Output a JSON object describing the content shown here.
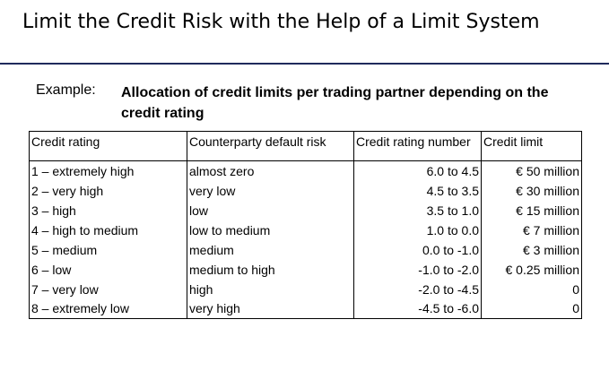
{
  "slide": {
    "title": "Limit the Credit Risk with the Help of a Limit System"
  },
  "example": {
    "label": "Example:",
    "heading": "Allocation of credit limits per trading partner depending on the credit rating"
  },
  "table": {
    "headers": [
      "Credit rating",
      "Counterparty default risk",
      "Credit rating number",
      "Credit limit"
    ],
    "rows": [
      [
        "1 – extremely high",
        "almost zero",
        "6.0 to  4.5",
        "€ 50 million"
      ],
      [
        "2 – very high",
        "very low",
        "4.5 to  3.5",
        "€ 30 million"
      ],
      [
        "3 – high",
        "low",
        "3.5 to  1.0",
        "€ 15 million"
      ],
      [
        "4 – high to medium",
        "low to medium",
        "1.0 to  0.0",
        "€ 7 million"
      ],
      [
        "5 – medium",
        "medium",
        "0.0 to -1.0",
        "€ 3 million"
      ],
      [
        "6 – low",
        "medium to high",
        "-1.0 to -2.0",
        "€ 0.25 million"
      ],
      [
        "7 – very low",
        "high",
        "-2.0 to -4.5",
        "0"
      ],
      [
        "8 – extremely low",
        "very high",
        "-4.5 to -6.0",
        "0"
      ]
    ]
  },
  "colors": {
    "title_rule": "#1f2a5c",
    "text": "#000000",
    "background": "#ffffff"
  }
}
